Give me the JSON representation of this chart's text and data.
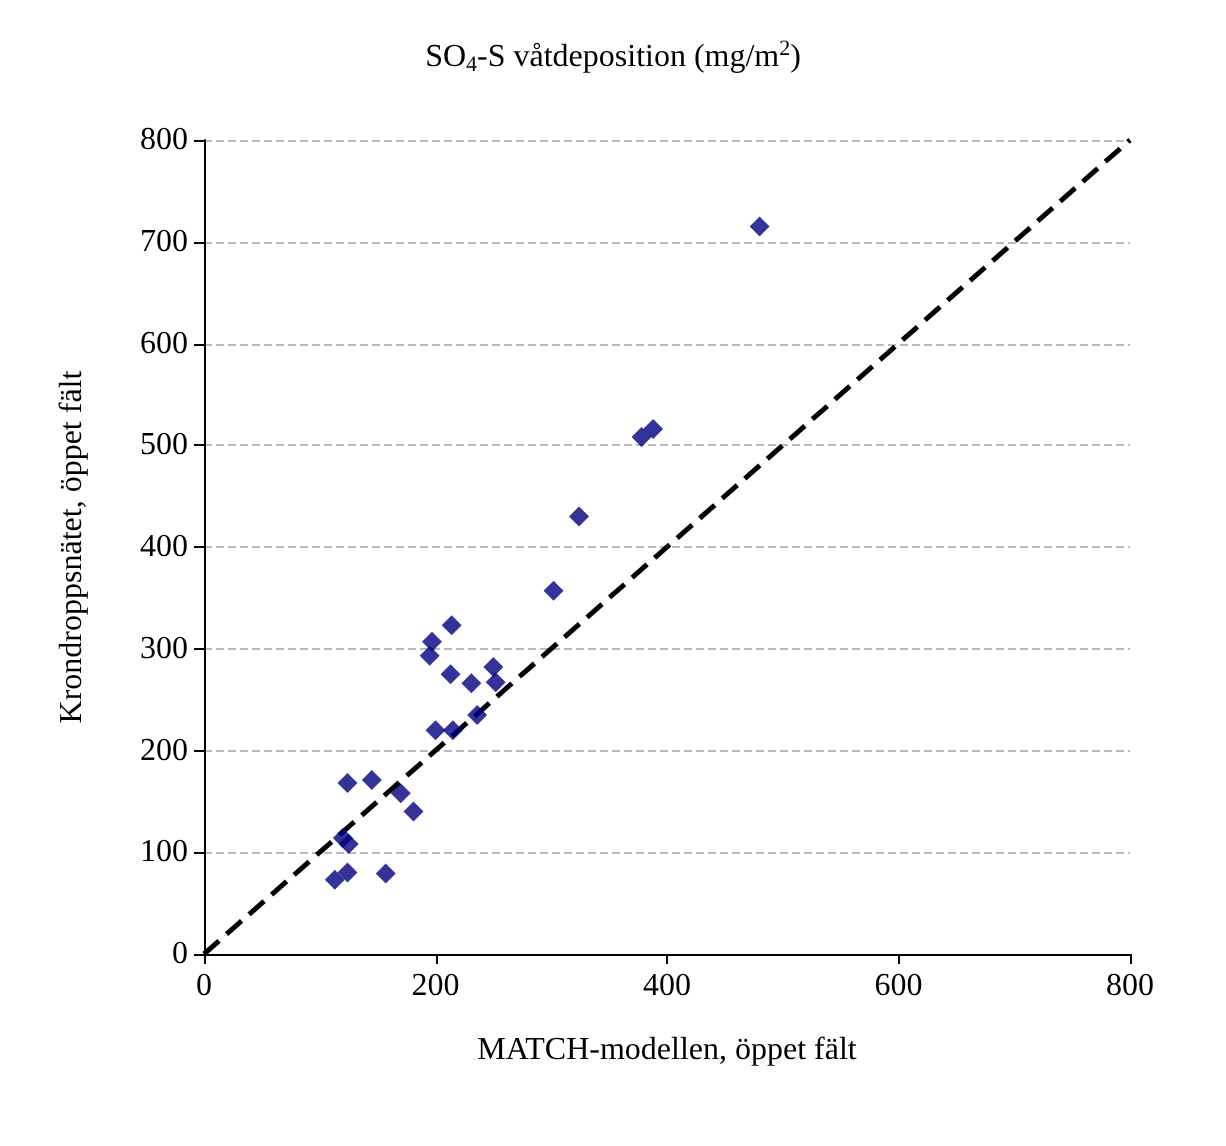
{
  "chart_data": {
    "type": "scatter",
    "title": "SO$_{4}$-S våtdeposition (mg/m$^{2}$)",
    "xlabel": "MATCH-modellen, öppet fält",
    "ylabel": "Krondroppsnätet, öppet fält",
    "xlim": [
      0,
      800
    ],
    "xticks": [
      0,
      200,
      400,
      600,
      800
    ],
    "ylim": [
      0,
      800
    ],
    "yticks": [
      0,
      100,
      200,
      300,
      400,
      500,
      600,
      700,
      800
    ],
    "grid": "y",
    "marker": "diamond",
    "series": [
      {
        "color": "#000080",
        "x": [
          480,
          378,
          388,
          324,
          302,
          214,
          197,
          195,
          213,
          250,
          252,
          231,
          236,
          200,
          215,
          124,
          145,
          170,
          181,
          120,
          125,
          113,
          124,
          157
        ],
        "values": [
          715,
          508,
          516,
          430,
          357,
          323,
          307,
          293,
          275,
          282,
          267,
          266,
          235,
          220,
          220,
          168,
          171,
          158,
          140,
          114,
          108,
          73,
          80,
          79
        ]
      },
      {
        "type": "line",
        "color": "#000000",
        "line_style": "dashed",
        "marker": "none",
        "x": [
          0,
          800
        ],
        "values": [
          0,
          800
        ]
      }
    ]
  }
}
